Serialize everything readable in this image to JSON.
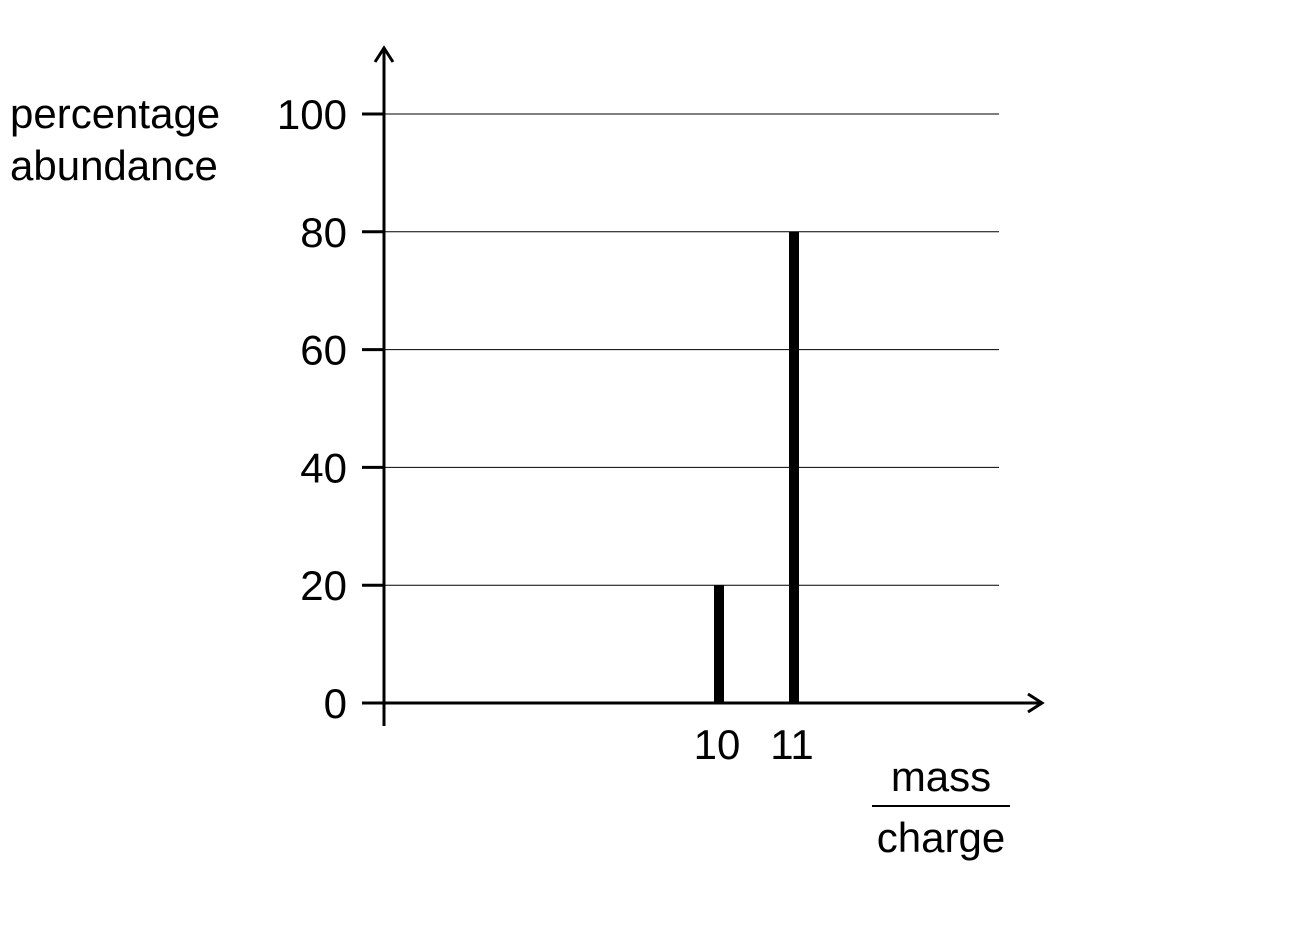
{
  "chart_data": {
    "type": "bar",
    "ylabel_lines": [
      "percentage",
      "abundance"
    ],
    "xlabel": {
      "numerator": "mass",
      "denominator": "charge"
    },
    "categories": [
      "10",
      "11"
    ],
    "x": [
      10,
      11
    ],
    "values": [
      20,
      80
    ],
    "yticks": [
      0,
      20,
      40,
      60,
      80,
      100
    ],
    "ytick_labels": [
      "0",
      "20",
      "40",
      "60",
      "80",
      "100"
    ],
    "ylim": [
      0,
      100
    ],
    "grid": true,
    "colors": {
      "bars": "#000000",
      "grid": "#000000",
      "axis": "#000000"
    }
  }
}
